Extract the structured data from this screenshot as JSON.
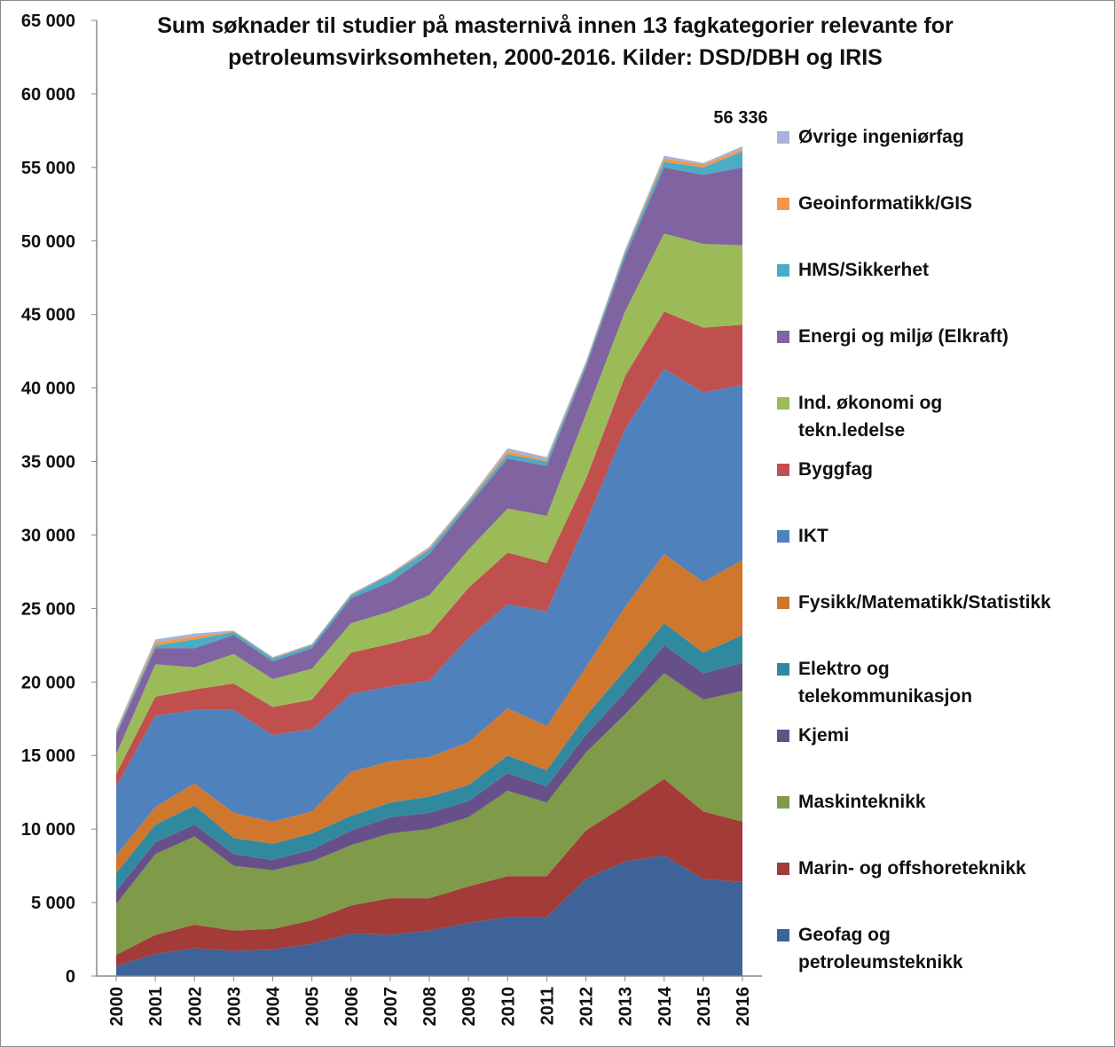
{
  "chart_data": {
    "type": "stacked-area",
    "title": "Sum søknader til studier på masternivå innen 13 fagkategorier relevante for petroleumsvirksomheten, 2000-2016. Kilder: DSD/DBH og IRIS",
    "categories": [
      "2000",
      "2001",
      "2002",
      "2003",
      "2004",
      "2005",
      "2006",
      "2007",
      "2008",
      "2009",
      "2010",
      "2011",
      "2012",
      "2013",
      "2014",
      "2015",
      "2016"
    ],
    "ylim": [
      0,
      65000
    ],
    "yticks": [
      0,
      {
        "value": 5000,
        "label": "5 000"
      },
      {
        "value": 10000,
        "label": "10 000"
      },
      {
        "value": 15000,
        "label": "15 000"
      },
      {
        "value": 20000,
        "label": "20 000"
      },
      {
        "value": 25000,
        "label": "25 000"
      },
      {
        "value": 30000,
        "label": "30 000"
      },
      {
        "value": 35000,
        "label": "35 000"
      },
      {
        "value": 40000,
        "label": "40 000"
      },
      {
        "value": 45000,
        "label": "45 000"
      },
      {
        "value": 50000,
        "label": "50 000"
      },
      {
        "value": 55000,
        "label": "55 000"
      },
      {
        "value": 60000,
        "label": "60 000"
      },
      {
        "value": 65000,
        "label": "65 000"
      }
    ],
    "total_label": "56 336",
    "series": [
      {
        "name": "Geofag og petroleumsteknikk",
        "color": "#3d6399",
        "values": [
          700,
          1500,
          1900,
          1700,
          1800,
          2200,
          2900,
          2800,
          3100,
          3600,
          4000,
          4000,
          6600,
          7800,
          8200,
          6600,
          6400
        ]
      },
      {
        "name": "Marin- og offshoreteknikk",
        "color": "#a33b38",
        "values": [
          750,
          1300,
          1600,
          1400,
          1400,
          1600,
          1900,
          2500,
          2200,
          2500,
          2800,
          2800,
          3300,
          3800,
          5200,
          4600,
          4100
        ]
      },
      {
        "name": "Maskinteknikk",
        "color": "#7f9a48",
        "values": [
          3450,
          5500,
          6000,
          4400,
          4000,
          4000,
          4100,
          4400,
          4700,
          4700,
          5800,
          5000,
          5300,
          6200,
          7200,
          7600,
          8900
        ]
      },
      {
        "name": "Kjemi",
        "color": "#67508a",
        "values": [
          900,
          800,
          800,
          800,
          700,
          800,
          1000,
          1100,
          1100,
          1100,
          1200,
          1100,
          1200,
          1500,
          1900,
          1800,
          1900
        ]
      },
      {
        "name": "Elektro og telekommunikasjon",
        "color": "#31899f",
        "values": [
          1200,
          1200,
          1300,
          1100,
          1100,
          1100,
          1000,
          1000,
          1100,
          1100,
          1200,
          1100,
          1300,
          1500,
          1500,
          1400,
          1900
        ]
      },
      {
        "name": "Fysikk/Matematikk/Statistikk",
        "color": "#d0772e",
        "values": [
          1200,
          1200,
          1500,
          1700,
          1500,
          1500,
          3000,
          2800,
          2700,
          2900,
          3200,
          3000,
          3300,
          4300,
          4700,
          4800,
          5100
        ]
      },
      {
        "name": "IKT",
        "color": "#4f81bd",
        "values": [
          4700,
          6200,
          5000,
          7000,
          5900,
          5600,
          5300,
          5100,
          5200,
          7100,
          7100,
          7800,
          9800,
          12100,
          12600,
          12900,
          11900
        ]
      },
      {
        "name": "Byggfag",
        "color": "#c0504d",
        "values": [
          850,
          1300,
          1400,
          1800,
          1900,
          2000,
          2800,
          2900,
          3200,
          3400,
          3500,
          3300,
          3000,
          3600,
          3900,
          4400,
          4100
        ]
      },
      {
        "name": "Ind. økonomi og tekn.ledelse",
        "color": "#9bbb59",
        "values": [
          1350,
          2200,
          1500,
          2000,
          1900,
          2100,
          2000,
          2200,
          2600,
          2600,
          3000,
          3200,
          4400,
          4400,
          5300,
          5700,
          5400
        ]
      },
      {
        "name": "Energi og miljø (Elkraft)",
        "color": "#8064a2",
        "values": [
          1300,
          1100,
          1300,
          1300,
          1200,
          1400,
          1700,
          2000,
          2800,
          3000,
          3400,
          3400,
          3200,
          3700,
          4500,
          4700,
          5300
        ]
      },
      {
        "name": "HMS/Sikkerhet",
        "color": "#4bacc6",
        "values": [
          150,
          200,
          600,
          200,
          200,
          200,
          200,
          500,
          300,
          200,
          300,
          300,
          200,
          300,
          400,
          500,
          1100
        ]
      },
      {
        "name": "Geoinformatikk/GIS",
        "color": "#f79646",
        "values": [
          100,
          200,
          200,
          50,
          50,
          50,
          50,
          50,
          100,
          100,
          200,
          100,
          100,
          100,
          200,
          200,
          150
        ]
      },
      {
        "name": "Øvrige ingeniørfag",
        "color": "#a5b4d8",
        "values": [
          150,
          200,
          200,
          50,
          50,
          50,
          50,
          50,
          100,
          100,
          200,
          200,
          100,
          100,
          200,
          100,
          186
        ]
      }
    ]
  }
}
